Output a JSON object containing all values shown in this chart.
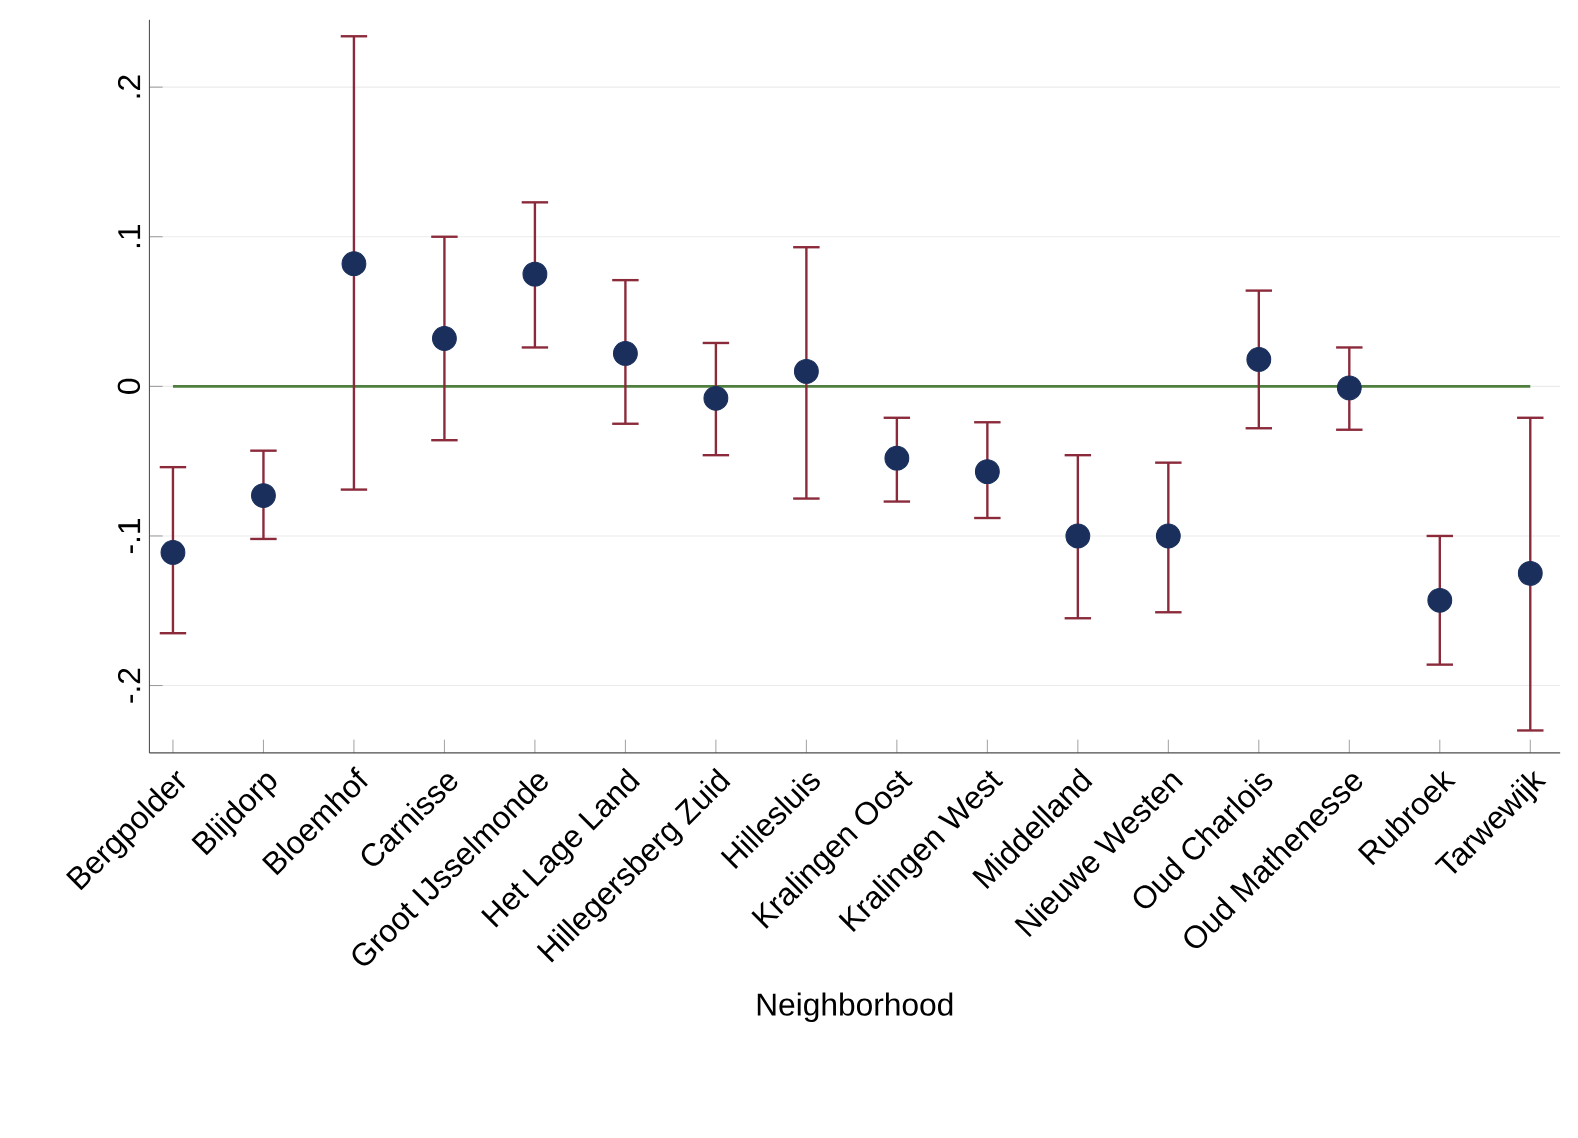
{
  "chart_data": {
    "type": "scatter",
    "xlabel": "Neighborhood",
    "categories": [
      "Bergpolder",
      "Blijdorp",
      "Bloemhof",
      "Carnisse",
      "Groot IJsselmonde",
      "Het Lage Land",
      "Hillegersberg Zuid",
      "Hillesluis",
      "Kralingen Oost",
      "Kralingen West",
      "Middelland",
      "Nieuwe Westen",
      "Oud Charlois",
      "Oud Mathenesse",
      "Rubroek",
      "Tarwewijk"
    ],
    "series": [
      {
        "color": "#1a2f5c",
        "values": [
          -0.111,
          -0.073,
          0.082,
          0.032,
          0.075,
          0.022,
          -0.008,
          0.01,
          -0.048,
          -0.057,
          -0.1,
          -0.1,
          0.018,
          -0.001,
          -0.143,
          -0.125
        ],
        "errors": [
          [
            -0.165,
            -0.054
          ],
          [
            -0.102,
            -0.043
          ],
          [
            -0.069,
            0.234
          ],
          [
            -0.036,
            0.1
          ],
          [
            0.026,
            0.123
          ],
          [
            -0.025,
            0.071
          ],
          [
            -0.046,
            0.029
          ],
          [
            -0.075,
            0.093
          ],
          [
            -0.077,
            -0.021
          ],
          [
            -0.088,
            -0.024
          ],
          [
            -0.155,
            -0.046
          ],
          [
            -0.151,
            -0.051
          ],
          [
            -0.028,
            0.064
          ],
          [
            -0.029,
            0.026
          ],
          [
            -0.186,
            -0.1
          ],
          [
            -0.23,
            -0.021
          ]
        ]
      }
    ],
    "ylim": [
      -0.245,
      0.245
    ],
    "yticks": [
      {
        "value": -0.2,
        "label": "-.2"
      },
      {
        "value": -0.1,
        "label": "-.1"
      },
      0,
      {
        "value": 0.1,
        "label": ".1"
      },
      {
        "value": 0.2,
        "label": ".2"
      }
    ],
    "grid": "y",
    "marker": "circle",
    "ref_lines": [
      {
        "axis": "y",
        "value": 0,
        "color": "#4f7f3f"
      }
    ]
  }
}
